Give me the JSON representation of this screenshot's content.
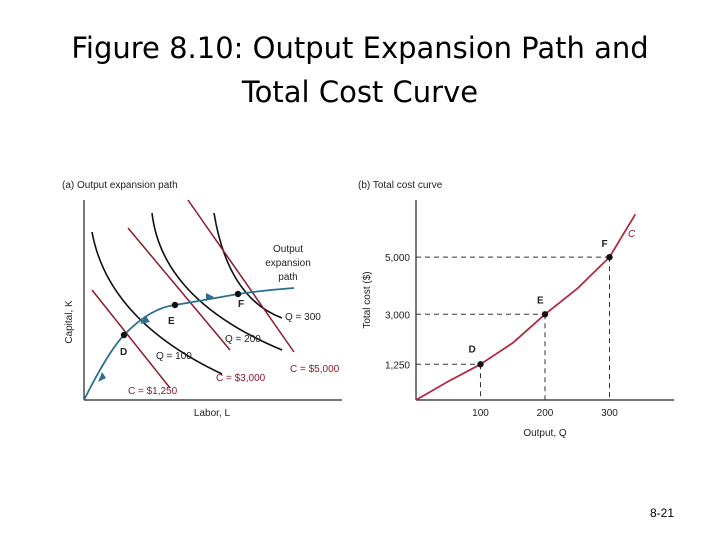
{
  "slide": {
    "title_line1": "Figure 8.10: Output Expansion Path and",
    "title_line2": "Total Cost Curve",
    "page_number": "8-21"
  },
  "colors": {
    "isoquant": "#111111",
    "isocost": "#8b1a2b",
    "expansion_path": "#2d6f8f",
    "cost_curve": "#b12a3f"
  },
  "panel_a": {
    "title": "(a) Output expansion path",
    "ylabel": "Capital, K",
    "xlabel": "Labor, L",
    "expansion_label_lines": [
      "Output",
      "expansion",
      "path"
    ],
    "isoquant_labels": [
      "Q = 100",
      "Q = 200",
      "Q = 300"
    ],
    "isocost_labels": [
      "C = $1,250",
      "C = $3,000",
      "C = $5,000"
    ],
    "points": [
      "D",
      "E",
      "F"
    ]
  },
  "chart_data": {
    "type": "line",
    "title": "(b) Total cost curve",
    "xlabel": "Output, Q",
    "ylabel": "Total cost ($)",
    "x_ticks": [
      "100",
      "200",
      "300"
    ],
    "y_ticks": [
      "1,250",
      "3,000",
      "5,000"
    ],
    "series_label": "C",
    "xlim": [
      0,
      400
    ],
    "ylim": [
      0,
      7000
    ],
    "points": [
      {
        "label": "D",
        "q": 100,
        "cost": 1250
      },
      {
        "label": "E",
        "q": 200,
        "cost": 3000
      },
      {
        "label": "F",
        "q": 300,
        "cost": 5000
      }
    ],
    "curve": [
      [
        0,
        0
      ],
      [
        50,
        650
      ],
      [
        100,
        1250
      ],
      [
        150,
        2000
      ],
      [
        200,
        3000
      ],
      [
        250,
        3900
      ],
      [
        300,
        5000
      ],
      [
        340,
        6500
      ]
    ]
  }
}
